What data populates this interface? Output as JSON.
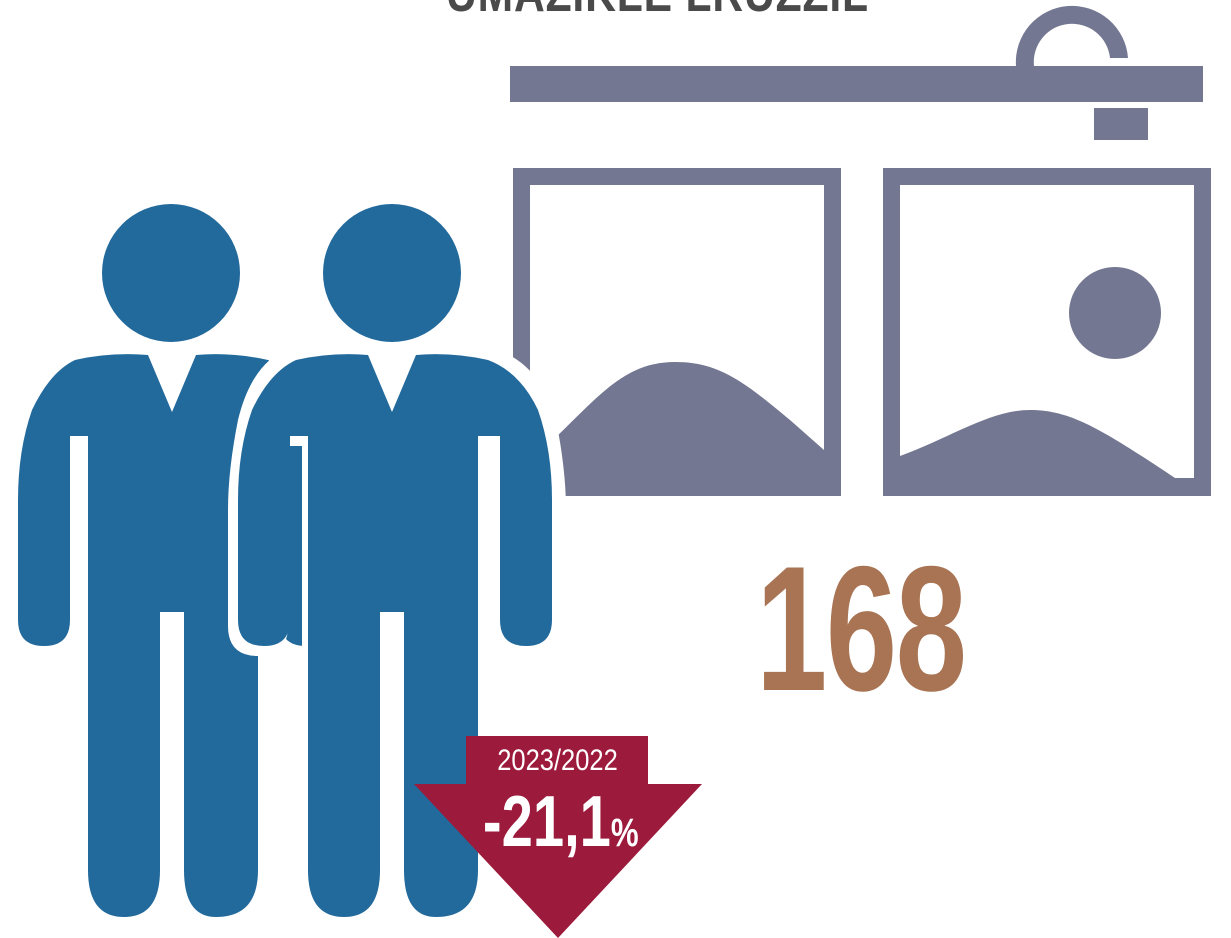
{
  "header": {
    "title_fragment": "UMAZIKLE LRUZZIL"
  },
  "stat": {
    "value": "168"
  },
  "change_badge": {
    "period": "2023/2022",
    "value": "-21,1",
    "unit": "%"
  },
  "colors": {
    "people": "#236a9c",
    "frames": "#737791",
    "value": "#a87453",
    "badge": "#9c1a3b",
    "title": "#4a4a4a"
  },
  "icons": {
    "people": "two-people-icon",
    "exhibition": "picture-frames-icon"
  }
}
